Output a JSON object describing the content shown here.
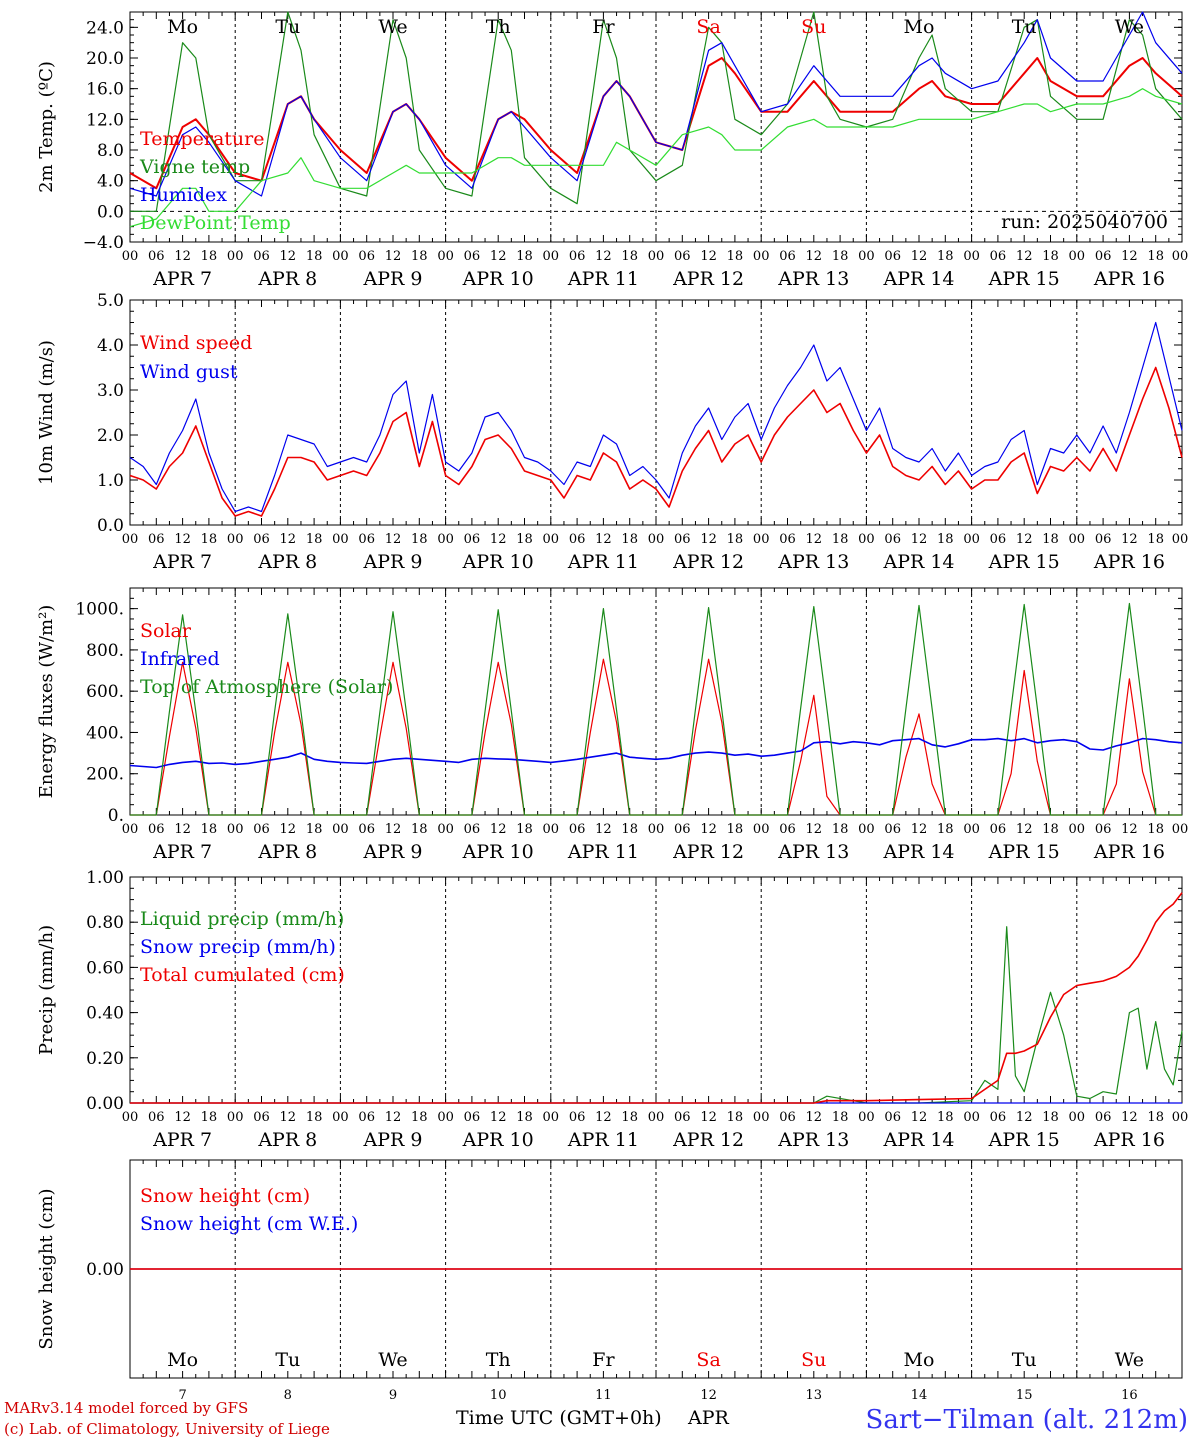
{
  "colors": {
    "red": "#ee0000",
    "dark_green": "#1a8a1a",
    "blue": "#0000ee",
    "light_green": "#33dd33",
    "black": "#000000",
    "station_blue": "#3333ee"
  },
  "header": {
    "run": "run: 2025040700"
  },
  "footer": {
    "model": "MARv3.14 model forced by GFS",
    "lab": "(c) Lab. of Climatology, University of Liege",
    "xlabel": "Time UTC (GMT+0h)",
    "month": "APR",
    "station": "Sart−Tilman (alt. 212m)"
  },
  "days": [
    {
      "name": "Mo",
      "date": "7",
      "label": "APR  7",
      "weekend": false
    },
    {
      "name": "Tu",
      "date": "8",
      "label": "APR  8",
      "weekend": false
    },
    {
      "name": "We",
      "date": "9",
      "label": "APR  9",
      "weekend": false
    },
    {
      "name": "Th",
      "date": "10",
      "label": "APR 10",
      "weekend": false
    },
    {
      "name": "Fr",
      "date": "11",
      "label": "APR 11",
      "weekend": false
    },
    {
      "name": "Sa",
      "date": "12",
      "label": "APR 12",
      "weekend": true
    },
    {
      "name": "Su",
      "date": "13",
      "label": "APR 13",
      "weekend": true
    },
    {
      "name": "Mo",
      "date": "14",
      "label": "APR 14",
      "weekend": false
    },
    {
      "name": "Tu",
      "date": "15",
      "label": "APR 15",
      "weekend": false
    },
    {
      "name": "We",
      "date": "16",
      "label": "APR 16",
      "weekend": false
    }
  ],
  "hour_ticks": [
    "00",
    "06",
    "12",
    "18"
  ],
  "end_tick": "00",
  "chart_data": [
    {
      "type": "line",
      "ylabel": "2m Temp. (ºC)",
      "ylim": [
        -4,
        26
      ],
      "yticks": [
        -4,
        0,
        4,
        8,
        12,
        16,
        20,
        24
      ],
      "ytick_labels": [
        "−4.0",
        "0.0",
        "4.0",
        "8.0",
        "12.0",
        "16.0",
        "20.0",
        "24.0"
      ],
      "zero_dashed": true,
      "x_hours": [
        0,
        6,
        12,
        15,
        18,
        24,
        30,
        36,
        39,
        42,
        48,
        54,
        60,
        63,
        66,
        72,
        78,
        84,
        87,
        90,
        96,
        102,
        108,
        111,
        114,
        120,
        126,
        132,
        135,
        138,
        144,
        150,
        156,
        159,
        162,
        168,
        174,
        180,
        183,
        186,
        192,
        198,
        204,
        207,
        210,
        216,
        222,
        228,
        231,
        234,
        240
      ],
      "series": [
        {
          "name": "Temperature",
          "color": "red",
          "values": [
            5,
            3,
            11,
            12,
            10,
            5,
            4,
            14,
            15,
            12,
            8,
            5,
            13,
            14,
            12,
            7,
            4,
            12,
            13,
            12,
            8,
            5,
            15,
            17,
            15,
            9,
            8,
            19,
            20,
            18,
            13,
            13,
            17,
            15,
            13,
            13,
            13,
            16,
            17,
            15,
            14,
            14,
            18,
            20,
            17,
            15,
            15,
            19,
            20,
            18,
            15
          ]
        },
        {
          "name": "Vigne temp",
          "color": "dark_green",
          "values": [
            0,
            0,
            22,
            20,
            10,
            4,
            4,
            26,
            21,
            10,
            3,
            2,
            25,
            20,
            8,
            3,
            2,
            25,
            21,
            7,
            3,
            1,
            25,
            20,
            8,
            4,
            6,
            24,
            22,
            12,
            10,
            14,
            26,
            15,
            12,
            11,
            12,
            20,
            23,
            16,
            13,
            13,
            24,
            25,
            15,
            12,
            12,
            25,
            23,
            16,
            12
          ]
        },
        {
          "name": "Humidex",
          "color": "blue",
          "values": [
            3,
            2,
            10,
            11,
            9,
            4,
            2,
            14,
            15,
            12,
            7,
            4,
            13,
            14,
            12,
            6,
            3,
            12,
            13,
            11,
            7,
            4,
            15,
            17,
            15,
            9,
            8,
            21,
            22,
            19,
            13,
            14,
            19,
            17,
            15,
            15,
            15,
            19,
            20,
            18,
            16,
            17,
            22,
            25,
            20,
            17,
            17,
            23,
            26,
            22,
            18
          ]
        },
        {
          "name": "DewPoint Temp",
          "color": "light_green",
          "values": [
            -2,
            -1,
            3,
            3,
            0,
            0,
            4,
            5,
            7,
            4,
            3,
            3,
            5,
            6,
            5,
            5,
            5,
            7,
            7,
            6,
            6,
            6,
            6,
            9,
            8,
            6,
            10,
            11,
            10,
            8,
            8,
            11,
            12,
            11,
            11,
            11,
            11,
            12,
            12,
            12,
            12,
            13,
            14,
            14,
            13,
            14,
            14,
            15,
            16,
            15,
            14
          ]
        }
      ]
    },
    {
      "type": "line",
      "ylabel": "10m Wind (m/s)",
      "ylim": [
        0,
        5
      ],
      "yticks": [
        0,
        1,
        2,
        3,
        4,
        5
      ],
      "ytick_labels": [
        "0.0",
        "1.0",
        "2.0",
        "3.0",
        "4.0",
        "5.0"
      ],
      "x_hours": [
        0,
        3,
        6,
        9,
        12,
        15,
        18,
        21,
        24,
        27,
        30,
        33,
        36,
        39,
        42,
        45,
        48,
        51,
        54,
        57,
        60,
        63,
        66,
        69,
        72,
        75,
        78,
        81,
        84,
        87,
        90,
        93,
        96,
        99,
        102,
        105,
        108,
        111,
        114,
        117,
        120,
        123,
        126,
        129,
        132,
        135,
        138,
        141,
        144,
        147,
        150,
        153,
        156,
        159,
        162,
        165,
        168,
        171,
        174,
        177,
        180,
        183,
        186,
        189,
        192,
        195,
        198,
        201,
        204,
        207,
        210,
        213,
        216,
        219,
        222,
        225,
        228,
        231,
        234,
        237,
        240
      ],
      "series": [
        {
          "name": "Wind speed",
          "color": "red",
          "values": [
            1.1,
            1.0,
            0.8,
            1.3,
            1.6,
            2.2,
            1.4,
            0.6,
            0.2,
            0.3,
            0.2,
            0.8,
            1.5,
            1.5,
            1.4,
            1.0,
            1.1,
            1.2,
            1.1,
            1.6,
            2.3,
            2.5,
            1.3,
            2.3,
            1.1,
            0.9,
            1.3,
            1.9,
            2.0,
            1.7,
            1.2,
            1.1,
            1.0,
            0.6,
            1.1,
            1.0,
            1.6,
            1.4,
            0.8,
            1.0,
            0.8,
            0.4,
            1.2,
            1.7,
            2.1,
            1.4,
            1.8,
            2.0,
            1.4,
            2.0,
            2.4,
            2.7,
            3.0,
            2.5,
            2.7,
            2.1,
            1.6,
            2.0,
            1.3,
            1.1,
            1.0,
            1.3,
            0.9,
            1.2,
            0.8,
            1.0,
            1.0,
            1.4,
            1.6,
            0.7,
            1.3,
            1.2,
            1.5,
            1.2,
            1.7,
            1.2,
            2.0,
            2.8,
            3.5,
            2.6,
            1.5
          ]
        },
        {
          "name": "Wind gust",
          "color": "blue",
          "values": [
            1.5,
            1.3,
            0.9,
            1.6,
            2.1,
            2.8,
            1.6,
            0.8,
            0.3,
            0.4,
            0.3,
            1.1,
            2.0,
            1.9,
            1.8,
            1.3,
            1.4,
            1.5,
            1.4,
            2.0,
            2.9,
            3.2,
            1.6,
            2.9,
            1.4,
            1.2,
            1.6,
            2.4,
            2.5,
            2.1,
            1.5,
            1.4,
            1.2,
            0.9,
            1.4,
            1.3,
            2.0,
            1.8,
            1.1,
            1.3,
            1.0,
            0.6,
            1.6,
            2.2,
            2.6,
            1.9,
            2.4,
            2.7,
            1.9,
            2.6,
            3.1,
            3.5,
            4.0,
            3.2,
            3.5,
            2.8,
            2.1,
            2.6,
            1.7,
            1.5,
            1.4,
            1.7,
            1.2,
            1.6,
            1.1,
            1.3,
            1.4,
            1.9,
            2.1,
            0.9,
            1.7,
            1.6,
            2.0,
            1.6,
            2.2,
            1.6,
            2.5,
            3.5,
            4.5,
            3.3,
            2.1
          ]
        }
      ]
    },
    {
      "type": "line",
      "ylabel": "Energy fluxes (W/m²)",
      "ylim": [
        0,
        1100
      ],
      "yticks": [
        0,
        200,
        400,
        600,
        800,
        1000
      ],
      "ytick_labels": [
        "0.",
        "200.",
        "400.",
        "600.",
        "800.",
        "1000."
      ],
      "x_hours": [
        0,
        3,
        6,
        9,
        12,
        15,
        18,
        21,
        24,
        27,
        30,
        33,
        36,
        39,
        42,
        45,
        48,
        51,
        54,
        57,
        60,
        63,
        66,
        69,
        72,
        75,
        78,
        81,
        84,
        87,
        90,
        93,
        96,
        99,
        102,
        105,
        108,
        111,
        114,
        117,
        120,
        123,
        126,
        129,
        132,
        135,
        138,
        141,
        144,
        147,
        150,
        153,
        156,
        159,
        162,
        165,
        168,
        171,
        174,
        177,
        180,
        183,
        186,
        189,
        192,
        195,
        198,
        201,
        204,
        207,
        210,
        213,
        216,
        219,
        222,
        225,
        228,
        231,
        234,
        237,
        240
      ],
      "series": [
        {
          "name": "Solar",
          "color": "red",
          "values": [
            0,
            0,
            0,
            380,
            740,
            420,
            0,
            0,
            0,
            0,
            0,
            400,
            740,
            440,
            0,
            0,
            0,
            0,
            0,
            380,
            740,
            420,
            0,
            0,
            0,
            0,
            0,
            400,
            740,
            440,
            0,
            0,
            0,
            0,
            0,
            400,
            755,
            450,
            0,
            0,
            0,
            0,
            0,
            410,
            755,
            450,
            0,
            0,
            0,
            0,
            0,
            260,
            580,
            90,
            0,
            0,
            0,
            0,
            0,
            280,
            490,
            150,
            0,
            0,
            0,
            0,
            0,
            200,
            700,
            260,
            0,
            0,
            0,
            0,
            0,
            150,
            660,
            210,
            0,
            0,
            0
          ]
        },
        {
          "name": "Infrared",
          "color": "blue",
          "values": [
            240,
            235,
            230,
            245,
            255,
            260,
            250,
            252,
            245,
            250,
            260,
            270,
            280,
            300,
            270,
            260,
            255,
            252,
            250,
            260,
            270,
            275,
            270,
            265,
            260,
            255,
            270,
            275,
            272,
            270,
            265,
            260,
            255,
            262,
            270,
            280,
            290,
            300,
            280,
            275,
            270,
            275,
            290,
            300,
            305,
            300,
            290,
            295,
            285,
            290,
            300,
            310,
            350,
            355,
            345,
            355,
            350,
            340,
            360,
            365,
            370,
            340,
            330,
            345,
            365,
            365,
            370,
            360,
            370,
            350,
            360,
            365,
            355,
            320,
            315,
            335,
            350,
            370,
            365,
            355,
            350
          ]
        },
        {
          "name": "Top of Atmosphere (Solar)",
          "color": "dark_green",
          "values": [
            0,
            0,
            0,
            500,
            970,
            500,
            0,
            0,
            0,
            0,
            0,
            500,
            975,
            500,
            0,
            0,
            0,
            0,
            0,
            500,
            985,
            505,
            0,
            0,
            0,
            0,
            0,
            505,
            995,
            505,
            0,
            0,
            0,
            0,
            0,
            510,
            1000,
            510,
            0,
            0,
            0,
            0,
            0,
            510,
            1005,
            510,
            0,
            0,
            0,
            0,
            0,
            515,
            1010,
            515,
            0,
            0,
            0,
            0,
            0,
            515,
            1015,
            515,
            0,
            0,
            0,
            0,
            0,
            520,
            1020,
            520,
            0,
            0,
            0,
            0,
            0,
            520,
            1025,
            520,
            0,
            0,
            0
          ]
        }
      ]
    },
    {
      "type": "line",
      "ylabel": "Precip (mm/h)",
      "ylim": [
        0,
        1
      ],
      "yticks": [
        0,
        0.2,
        0.4,
        0.6,
        0.8,
        1.0
      ],
      "ytick_labels": [
        "0.00",
        "0.20",
        "0.40",
        "0.60",
        "0.80",
        "1.00"
      ],
      "x_hours": [
        0,
        24,
        48,
        72,
        96,
        120,
        144,
        156,
        159,
        168,
        180,
        192,
        195,
        198,
        200,
        202,
        204,
        207,
        210,
        213,
        216,
        219,
        222,
        225,
        228,
        230,
        232,
        234,
        236,
        238,
        240
      ],
      "series": [
        {
          "name": "Liquid precip (mm/h)",
          "color": "dark_green",
          "values": [
            0,
            0,
            0,
            0,
            0,
            0,
            0,
            0,
            0.03,
            0,
            0,
            0.01,
            0.1,
            0.06,
            0.78,
            0.12,
            0.05,
            0.28,
            0.49,
            0.3,
            0.03,
            0.02,
            0.05,
            0.04,
            0.4,
            0.42,
            0.15,
            0.36,
            0.15,
            0.08,
            0.32
          ]
        },
        {
          "name": "Snow precip (mm/h)",
          "color": "blue",
          "values": [
            0,
            0,
            0,
            0,
            0,
            0,
            0,
            0,
            0,
            0,
            0,
            0,
            0,
            0,
            0,
            0,
            0,
            0,
            0,
            0,
            0,
            0,
            0,
            0,
            0,
            0,
            0,
            0,
            0,
            0,
            0
          ]
        },
        {
          "name": "Total cumulated (cm)",
          "color": "red",
          "values": [
            0,
            0,
            0,
            0,
            0,
            0,
            0,
            0,
            0.01,
            0.01,
            0.015,
            0.02,
            0.06,
            0.1,
            0.22,
            0.22,
            0.23,
            0.26,
            0.38,
            0.48,
            0.52,
            0.53,
            0.54,
            0.56,
            0.6,
            0.65,
            0.72,
            0.8,
            0.85,
            0.88,
            0.93
          ]
        }
      ]
    },
    {
      "type": "line",
      "ylabel": "Snow height (cm)",
      "ylim": [
        -1,
        1
      ],
      "yticks": [
        0
      ],
      "ytick_labels": [
        "0.00"
      ],
      "x_hours": [
        0,
        240
      ],
      "series": [
        {
          "name": "Snow height (cm)",
          "color": "red",
          "values": [
            0,
            0
          ]
        },
        {
          "name": "Snow height (cm W.E.)",
          "color": "blue",
          "values": [
            0,
            0
          ]
        }
      ]
    }
  ]
}
